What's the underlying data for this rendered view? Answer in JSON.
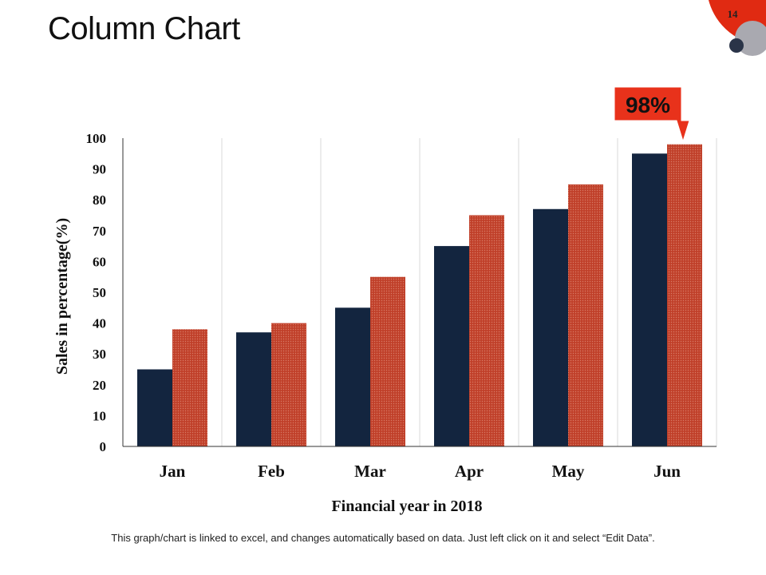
{
  "slide": {
    "title": "Column Chart",
    "page_number": "14",
    "footer_note": "This graph/chart is linked to excel, and changes automatically based on data. Just left click on it and select “Edit Data”."
  },
  "colors": {
    "series1": "#13253f",
    "series2": "#c0402a",
    "callout": "#e8321b",
    "accent_red": "#e02a12",
    "accent_gray": "#a9a9b0",
    "accent_navy": "#2a3448"
  },
  "chart_data": {
    "type": "bar",
    "categories": [
      "Jan",
      "Feb",
      "Mar",
      "Apr",
      "May",
      "Jun"
    ],
    "series": [
      {
        "values": [
          25,
          37,
          45,
          65,
          77,
          95
        ]
      },
      {
        "values": [
          38,
          40,
          55,
          75,
          85,
          98
        ]
      }
    ],
    "title": "",
    "xlabel": "Financial year in 2018",
    "ylabel": "Sales in percentage(%)",
    "ylim": [
      0,
      100
    ],
    "yticks": [
      0,
      10,
      20,
      30,
      40,
      50,
      60,
      70,
      80,
      90,
      100
    ],
    "grid": "vertical category separators",
    "legend": "none",
    "annotation": {
      "text": "98%",
      "category": "Jun",
      "series_index": 1
    }
  }
}
